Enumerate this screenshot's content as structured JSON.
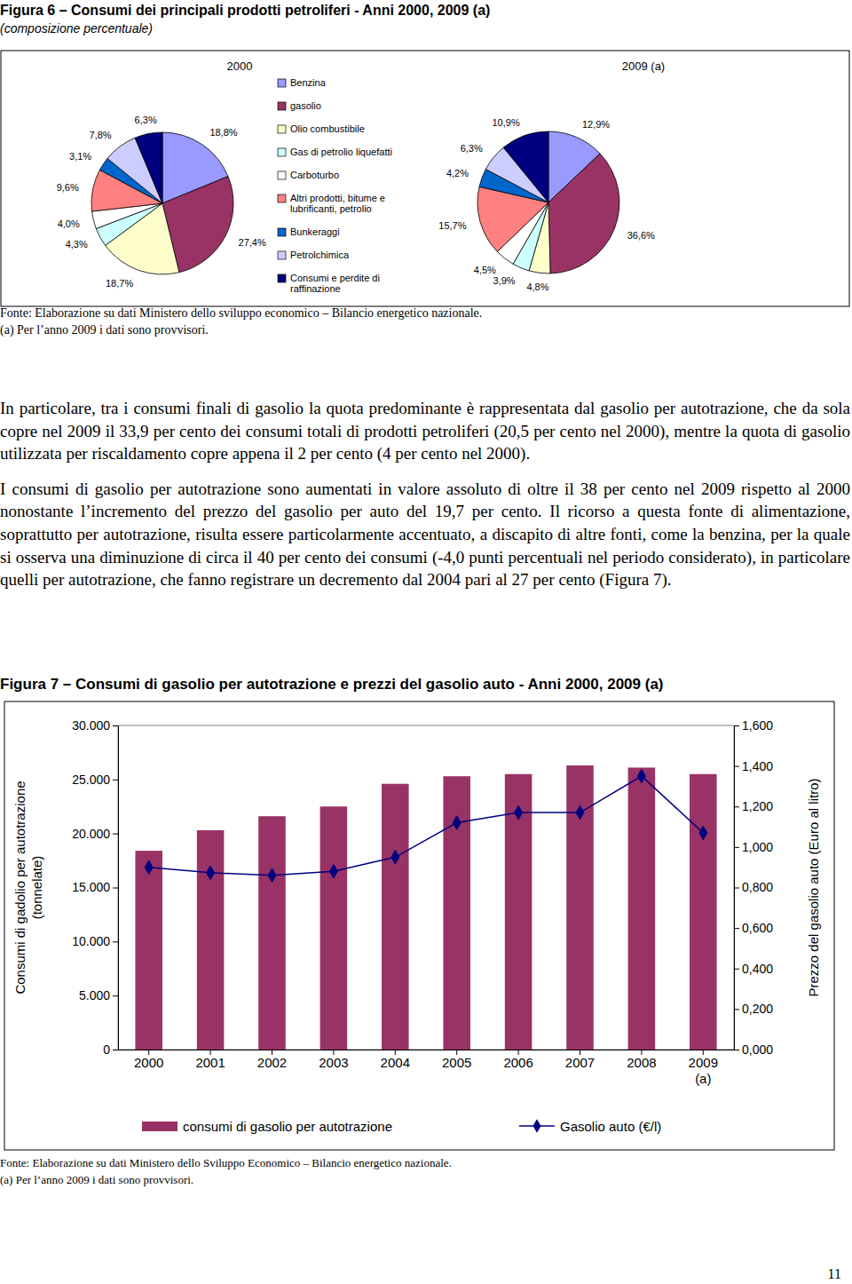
{
  "chart_data": [
    {
      "type": "pie",
      "title": "Figura 6 – Consumi dei principali prodotti petroliferi - Anni 2000, 2009 (a)",
      "subtitle": "(composizione percentuale)",
      "categories": [
        "Benzina",
        "gasolio",
        "Olio combustibile",
        "Gas di petrolio liquefatti",
        "Carboturbo",
        "Altri prodotti, bitume e lubrificanti, petrolio",
        "Bunkeraggi",
        "Petrolchimica",
        "Consumi e perdite di raffinazione"
      ],
      "colors": [
        "#9999ff",
        "#993366",
        "#ffffcc",
        "#ccffff",
        "#ffffff",
        "#ff8080",
        "#0066cc",
        "#ccccff",
        "#000080"
      ],
      "series": [
        {
          "name": "2000",
          "values": [
            18.8,
            27.4,
            18.7,
            4.3,
            4.0,
            9.6,
            3.1,
            7.8,
            6.3
          ],
          "value_labels": [
            "18,8%",
            "27,4%",
            "18,7%",
            "4,3%",
            "4,0%",
            "9,6%",
            "3,1%",
            "7,8%",
            "6,3%"
          ]
        },
        {
          "name": "2009 (a)",
          "values": [
            12.9,
            36.6,
            4.8,
            3.9,
            4.5,
            15.7,
            4.2,
            6.3,
            10.9
          ],
          "value_labels": [
            "12,9%",
            "36,6%",
            "4,8%",
            "3,9%",
            "4,5%",
            "15,7%",
            "4,2%",
            "6,3%",
            "10,9%"
          ]
        }
      ],
      "data_labels": true,
      "legend": "center"
    },
    {
      "type": "bar",
      "title": "Figura 7 – Consumi di gasolio per autotrazione e prezzi del gasolio auto - Anni 2000, 2009 (a)",
      "categories": [
        "2000",
        "2001",
        "2002",
        "2003",
        "2004",
        "2005",
        "2006",
        "2007",
        "2008",
        "2009 (a)"
      ],
      "series": [
        {
          "name": "consumi di gasolio per autotrazione",
          "type": "bar",
          "color": "#993366",
          "values": [
            18400,
            20300,
            21600,
            22500,
            24600,
            25300,
            25500,
            26300,
            26100,
            25500
          ]
        },
        {
          "name": "Gasolio auto (€/l)",
          "type": "line",
          "color": "#000080",
          "marker": "diamond",
          "axis": "y2",
          "values": [
            0.9,
            0.873,
            0.86,
            0.88,
            0.95,
            1.12,
            1.17,
            1.17,
            1.35,
            1.07
          ]
        }
      ],
      "y_label": "Consumi di gadolio per autotrazione (tonnelate)",
      "y2_label": "Prezzo del gasolio auto (Euro al litro)",
      "ylim": [
        0,
        30000
      ],
      "yticks": [
        0,
        {
          "value": 5000,
          "label": "5.000"
        },
        {
          "value": 10000,
          "label": "10.000"
        },
        {
          "value": 15000,
          "label": "15.000"
        },
        {
          "value": 20000,
          "label": "20.000"
        },
        {
          "value": 25000,
          "label": "25.000"
        },
        {
          "value": 30000,
          "label": "30.000"
        }
      ],
      "y2lim": [
        0,
        1.6
      ],
      "y2ticks": [
        {
          "value": 0,
          "label": "0,000"
        },
        {
          "value": 0.2,
          "label": "0,200"
        },
        {
          "value": 0.4,
          "label": "0,400"
        },
        {
          "value": 0.6,
          "label": "0,600"
        },
        {
          "value": 0.8,
          "label": "0,800"
        },
        {
          "value": 1.0,
          "label": "1,000"
        },
        {
          "value": 1.2,
          "label": "1,200"
        },
        {
          "value": 1.4,
          "label": "1,400"
        },
        {
          "value": 1.6,
          "label": "1,600"
        }
      ],
      "legend": "bottom"
    }
  ],
  "document": {
    "figure6_notes": [
      "Fonte: Elaborazione su dati Ministero dello sviluppo economico – Bilancio energetico nazionale.",
      "(a) Per l’anno 2009 i dati sono provvisori."
    ],
    "paragraphs": [
      "In particolare, tra i consumi finali di gasolio la quota predominante è rappresentata dal gasolio per autotrazione, che da sola copre nel 2009 il 33,9 per cento dei consumi totali di prodotti petroliferi (20,5 per cento nel 2000), mentre la quota di gasolio utilizzata per riscaldamento copre appena il 2 per cento (4 per cento nel 2000).",
      "I consumi di gasolio per autotrazione sono aumentati in valore assoluto di oltre il 38 per cento nel 2009 rispetto al 2000 nonostante l’incremento del prezzo del gasolio per auto del 19,7 per cento. Il ricorso a questa fonte di alimentazione, soprattutto per autotrazione, risulta essere particolarmente accentuato, a discapito di altre fonti, come la benzina, per la quale si osserva una diminuzione di circa il 40 per cento dei consumi (-4,0 punti percentuali nel periodo considerato), in particolare quelli per autotrazione, che fanno registrare un decremento dal 2004 pari al 27 per cento (Figura 7)."
    ],
    "figure7_notes": [
      "Fonte: Elaborazione su dati Ministero dello Sviluppo Economico – Bilancio energetico nazionale.",
      "(a) Per l’anno 2009 i dati sono provvisori."
    ],
    "page_number": "11"
  }
}
